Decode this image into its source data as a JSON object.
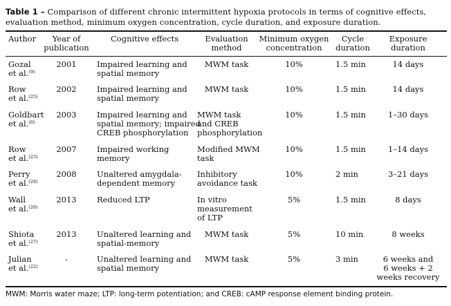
{
  "caption": {
    "label": "Table 1 –",
    "text": " Comparison of different chronic intermittent hypoxia protocols in terms of cognitive effects, evaluation method, minimum oxygen concentration, cycle duration, and exposure duration."
  },
  "headers": {
    "author": "Author",
    "year": [
      "Year of",
      "publication"
    ],
    "effects": "Cognitive effects",
    "method": [
      "Evaluation",
      "method"
    ],
    "oxygen": [
      "Minimum oxygen",
      "concentration"
    ],
    "cycle": [
      "Cycle",
      "duration"
    ],
    "exposure": [
      "Exposure",
      "duration"
    ]
  },
  "rows": [
    {
      "author": [
        "Gozal",
        "et al."
      ],
      "ref": "(9)",
      "year": "2001",
      "effects": [
        "Impaired learning and",
        "spatial memory"
      ],
      "method": [
        "MWM task"
      ],
      "method_align": "center",
      "oxygen": "10%",
      "cycle": "1.5 min",
      "exposure": [
        "14 days"
      ]
    },
    {
      "author": [
        "Row",
        "et al."
      ],
      "ref": "(25)",
      "year": "2002",
      "effects": [
        "Impaired learning and",
        "spatial memory"
      ],
      "method": [
        "MWM task"
      ],
      "method_align": "center",
      "oxygen": "10%",
      "cycle": "1.5 min",
      "exposure": [
        "14 days"
      ]
    },
    {
      "author": [
        "Goldbart",
        "et al."
      ],
      "ref": "(6)",
      "year": "2003",
      "effects": [
        "Impaired learning and",
        "spatial memory; impaired",
        "CREB phosphorylation"
      ],
      "method": [
        "MWM task",
        "and CREB",
        "phosphorylation"
      ],
      "method_align": "left",
      "oxygen": "10%",
      "cycle": "1.5 min",
      "exposure": [
        "1–30 days"
      ]
    },
    {
      "author": [
        "Row",
        "et al."
      ],
      "ref": "(23)",
      "year": "2007",
      "effects": [
        "Impaired working",
        "memory"
      ],
      "method": [
        "Modified MWM",
        "task"
      ],
      "method_align": "left",
      "oxygen": "10%",
      "cycle": "1.5 min",
      "exposure": [
        "1–14 days"
      ]
    },
    {
      "author": [
        "Perry",
        "et al."
      ],
      "ref": "(28)",
      "year": "2008",
      "effects": [
        "Unaltered amygdala-",
        "dependent memory"
      ],
      "method": [
        "Inhibitory",
        "avoidance task"
      ],
      "method_align": "left",
      "oxygen": "10%",
      "cycle": "2 min",
      "exposure": [
        "3–21 days"
      ]
    },
    {
      "author": [
        "Wall",
        "et al."
      ],
      "ref": "(26)",
      "year": "2013",
      "effects": [
        "Reduced LTP"
      ],
      "method": [
        "In vitro",
        "measurement",
        "of LTP"
      ],
      "method_align": "left",
      "oxygen": "5%",
      "cycle": "1.5 min",
      "exposure": [
        "8 days"
      ]
    },
    {
      "author": [
        "Shiota",
        "et al."
      ],
      "ref": "(27)",
      "year": "2013",
      "effects": [
        "Unaltered learning and",
        "spatial-memory"
      ],
      "method": [
        "MWM task"
      ],
      "method_align": "center",
      "oxygen": "5%",
      "cycle": "10 min",
      "exposure": [
        "8 weeks"
      ]
    },
    {
      "author": [
        "Julian",
        "et al."
      ],
      "ref": "(22)",
      "year": "-",
      "effects": [
        "Unaltered learning and",
        "spatial memory"
      ],
      "method": [
        "MWM task"
      ],
      "method_align": "center",
      "oxygen": "5%",
      "cycle": "3 min",
      "exposure": [
        "6 weeks and",
        "6 weeks + 2",
        "weeks recovery"
      ]
    }
  ],
  "footer": "MWM: Morris water maze; LTP: long-term potentiation; and CREB: cAMP response element binding protein."
}
